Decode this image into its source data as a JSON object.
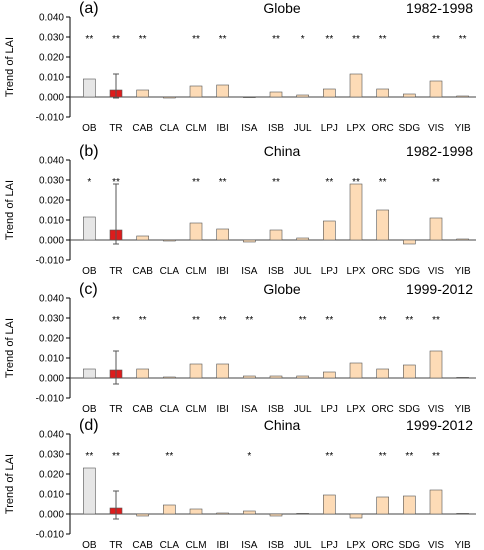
{
  "figure": {
    "ylabel": "Trend of LAI"
  },
  "colors": {
    "obs": "#e6e6e6",
    "tr": "#dd1c1c",
    "model": "#fddbb6",
    "edge": "#555555",
    "zero_line": "#444444",
    "error_bar": "#555555"
  },
  "chart_data": [
    {
      "type": "bar",
      "panel": "(a)",
      "region": "Globe",
      "period": "1982-1998",
      "categories": [
        "OB",
        "TR",
        "CAB",
        "CLA",
        "CLM",
        "IBI",
        "ISA",
        "ISB",
        "JUL",
        "LPJ",
        "LPX",
        "ORC",
        "SDG",
        "VIS",
        "YIB"
      ],
      "values": [
        0.009,
        0.0035,
        0.0035,
        -0.0005,
        0.0055,
        0.006,
        -0.0003,
        0.0025,
        0.001,
        0.004,
        0.0115,
        0.004,
        0.0015,
        0.008,
        0.0005
      ],
      "significance": [
        "**",
        "**",
        "**",
        "",
        "**",
        "**",
        "",
        "**",
        "*",
        "**",
        "**",
        "**",
        "",
        "**",
        "**"
      ],
      "error_bar_TR": [
        -0.0005,
        0.0115
      ],
      "ylim": [
        -0.01,
        0.04
      ],
      "yticks": [
        "-0.010",
        "0.000",
        "0.010",
        "0.020",
        "0.030",
        "0.040"
      ]
    },
    {
      "type": "bar",
      "panel": "(b)",
      "region": "China",
      "period": "1982-1998",
      "categories": [
        "OB",
        "TR",
        "CAB",
        "CLA",
        "CLM",
        "IBI",
        "ISA",
        "ISB",
        "JUL",
        "LPJ",
        "LPX",
        "ORC",
        "SDG",
        "VIS",
        "YIB"
      ],
      "values": [
        0.0115,
        0.005,
        0.002,
        -0.0005,
        0.0085,
        0.0055,
        -0.001,
        0.005,
        0.001,
        0.0095,
        0.028,
        0.015,
        -0.002,
        0.011,
        0.0005
      ],
      "significance": [
        "*",
        "**",
        "",
        "",
        "**",
        "**",
        "",
        "**",
        "",
        "**",
        "**",
        "**",
        "",
        "**",
        ""
      ],
      "error_bar_TR": [
        -0.002,
        0.028
      ],
      "ylim": [
        -0.01,
        0.04
      ],
      "yticks": [
        "-0.010",
        "0.000",
        "0.010",
        "0.020",
        "0.030",
        "0.040"
      ]
    },
    {
      "type": "bar",
      "panel": "(c)",
      "region": "Globe",
      "period": "1999-2012",
      "categories": [
        "OB",
        "TR",
        "CAB",
        "CLA",
        "CLM",
        "IBI",
        "ISA",
        "ISB",
        "JUL",
        "LPJ",
        "LPX",
        "ORC",
        "SDG",
        "VIS",
        "YIB"
      ],
      "values": [
        0.0045,
        0.004,
        0.0045,
        0.0005,
        0.007,
        0.007,
        0.001,
        0.001,
        0.001,
        0.003,
        0.0075,
        0.0045,
        0.0065,
        0.0135,
        0.0003
      ],
      "significance": [
        "",
        "**",
        "**",
        "",
        "**",
        "**",
        "**",
        "",
        "**",
        "**",
        "",
        "**",
        "**",
        "**",
        ""
      ],
      "error_bar_TR": [
        -0.003,
        0.0135
      ],
      "ylim": [
        -0.01,
        0.04
      ],
      "yticks": [
        "-0.010",
        "0.000",
        "0.010",
        "0.020",
        "0.030",
        "0.040"
      ]
    },
    {
      "type": "bar",
      "panel": "(d)",
      "region": "China",
      "period": "1999-2012",
      "categories": [
        "OB",
        "TR",
        "CAB",
        "CLA",
        "CLM",
        "IBI",
        "ISA",
        "ISB",
        "JUL",
        "LPJ",
        "LPX",
        "ORC",
        "SDG",
        "VIS",
        "YIB"
      ],
      "values": [
        0.023,
        0.003,
        -0.001,
        0.0045,
        0.0025,
        0.0005,
        0.0015,
        -0.001,
        0.0003,
        0.0095,
        -0.002,
        0.0085,
        0.009,
        0.012,
        0.0003
      ],
      "significance": [
        "**",
        "**",
        "",
        "**",
        "",
        "",
        "*",
        "",
        "",
        "**",
        "",
        "**",
        "**",
        "**",
        ""
      ],
      "error_bar_TR": [
        -0.0025,
        0.0115
      ],
      "ylim": [
        -0.01,
        0.04
      ],
      "yticks": [
        "-0.010",
        "0.000",
        "0.010",
        "0.020",
        "0.030",
        "0.040"
      ]
    }
  ]
}
